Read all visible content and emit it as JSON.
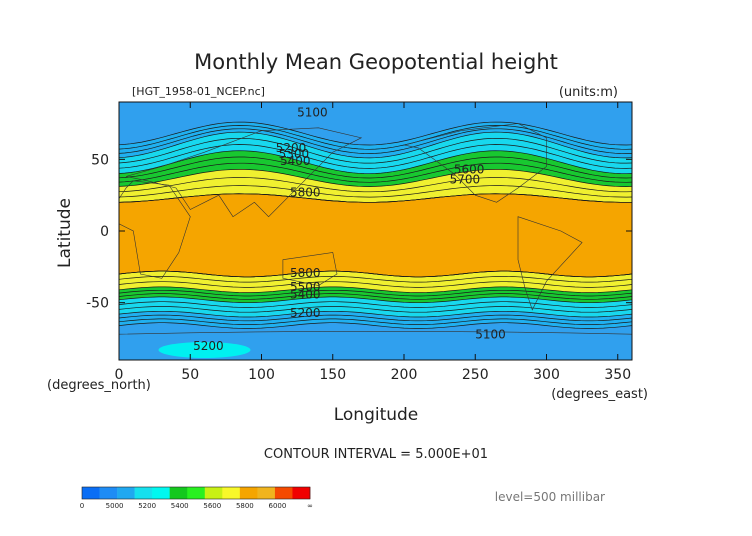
{
  "chart_data": {
    "type": "contour",
    "title": "Monthly Mean Geopotential height",
    "source_label": "[HGT_1958-01_NCEP.nc]",
    "units_label": "(units:m)",
    "xlabel": "Longitude",
    "ylabel": "Latitude",
    "x_unit_label": "(degrees_east)",
    "y_unit_label": "(degrees_north)",
    "xlim": [
      0,
      360
    ],
    "ylim": [
      -90,
      90
    ],
    "x_ticks": [
      0,
      50,
      100,
      150,
      200,
      250,
      300,
      350
    ],
    "y_ticks": [
      -50,
      0,
      50
    ],
    "contour_interval_text": "CONTOUR INTERVAL = 5.000E+01",
    "level_text": "level=500 millibar",
    "contour_labels": [
      {
        "text": "5100",
        "lon": 125,
        "lat": 80
      },
      {
        "text": "5200",
        "lon": 110,
        "lat": 55
      },
      {
        "text": "5300",
        "lon": 112,
        "lat": 51
      },
      {
        "text": "5400",
        "lon": 113,
        "lat": 46
      },
      {
        "text": "5600",
        "lon": 235,
        "lat": 40
      },
      {
        "text": "5700",
        "lon": 232,
        "lat": 33
      },
      {
        "text": "5800",
        "lon": 120,
        "lat": 24
      },
      {
        "text": "5800",
        "lon": 120,
        "lat": -32
      },
      {
        "text": "5500",
        "lon": 120,
        "lat": -42
      },
      {
        "text": "5400",
        "lon": 120,
        "lat": -47
      },
      {
        "text": "5200",
        "lon": 120,
        "lat": -60
      },
      {
        "text": "5200",
        "lon": 52,
        "lat": -83
      },
      {
        "text": "5100",
        "lon": 250,
        "lat": -75
      }
    ],
    "colorbar": {
      "tick_labels": [
        "0",
        "5000",
        "5200",
        "5400",
        "5600",
        "5800",
        "6000",
        "∞"
      ],
      "bins": [
        {
          "from": 0,
          "to": 5000,
          "color": "#0a6ef5"
        },
        {
          "from": 5000,
          "to": 5100,
          "color": "#1e8cf5"
        },
        {
          "from": 5100,
          "to": 5200,
          "color": "#20a8f0"
        },
        {
          "from": 5200,
          "to": 5300,
          "color": "#16e0ee"
        },
        {
          "from": 5300,
          "to": 5400,
          "color": "#00f8f0"
        },
        {
          "from": 5400,
          "to": 5500,
          "color": "#14c81e"
        },
        {
          "from": 5500,
          "to": 5600,
          "color": "#28f020"
        },
        {
          "from": 5600,
          "to": 5700,
          "color": "#c8f014"
        },
        {
          "from": 5700,
          "to": 5800,
          "color": "#f8f82a"
        },
        {
          "from": 5800,
          "to": 5900,
          "color": "#f5a500"
        },
        {
          "from": 5900,
          "to": 6000,
          "color": "#f0b41e"
        },
        {
          "from": 6000,
          "to": 6100,
          "color": "#f54a00"
        },
        {
          "from": 6100,
          "to": 6200,
          "color": "#f00000"
        }
      ]
    },
    "field_bands": [
      {
        "range": "<5100",
        "color": "#30a0ee"
      },
      {
        "range": "5100-5200",
        "color": "#20b0f0"
      },
      {
        "range": "5200-5400",
        "color": "#18d8ee"
      },
      {
        "range": "5400-5600",
        "color": "#18c830"
      },
      {
        "range": "5600-5800",
        "color": "#f0f030"
      },
      {
        "range": ">5800",
        "color": "#f5a500"
      }
    ]
  }
}
